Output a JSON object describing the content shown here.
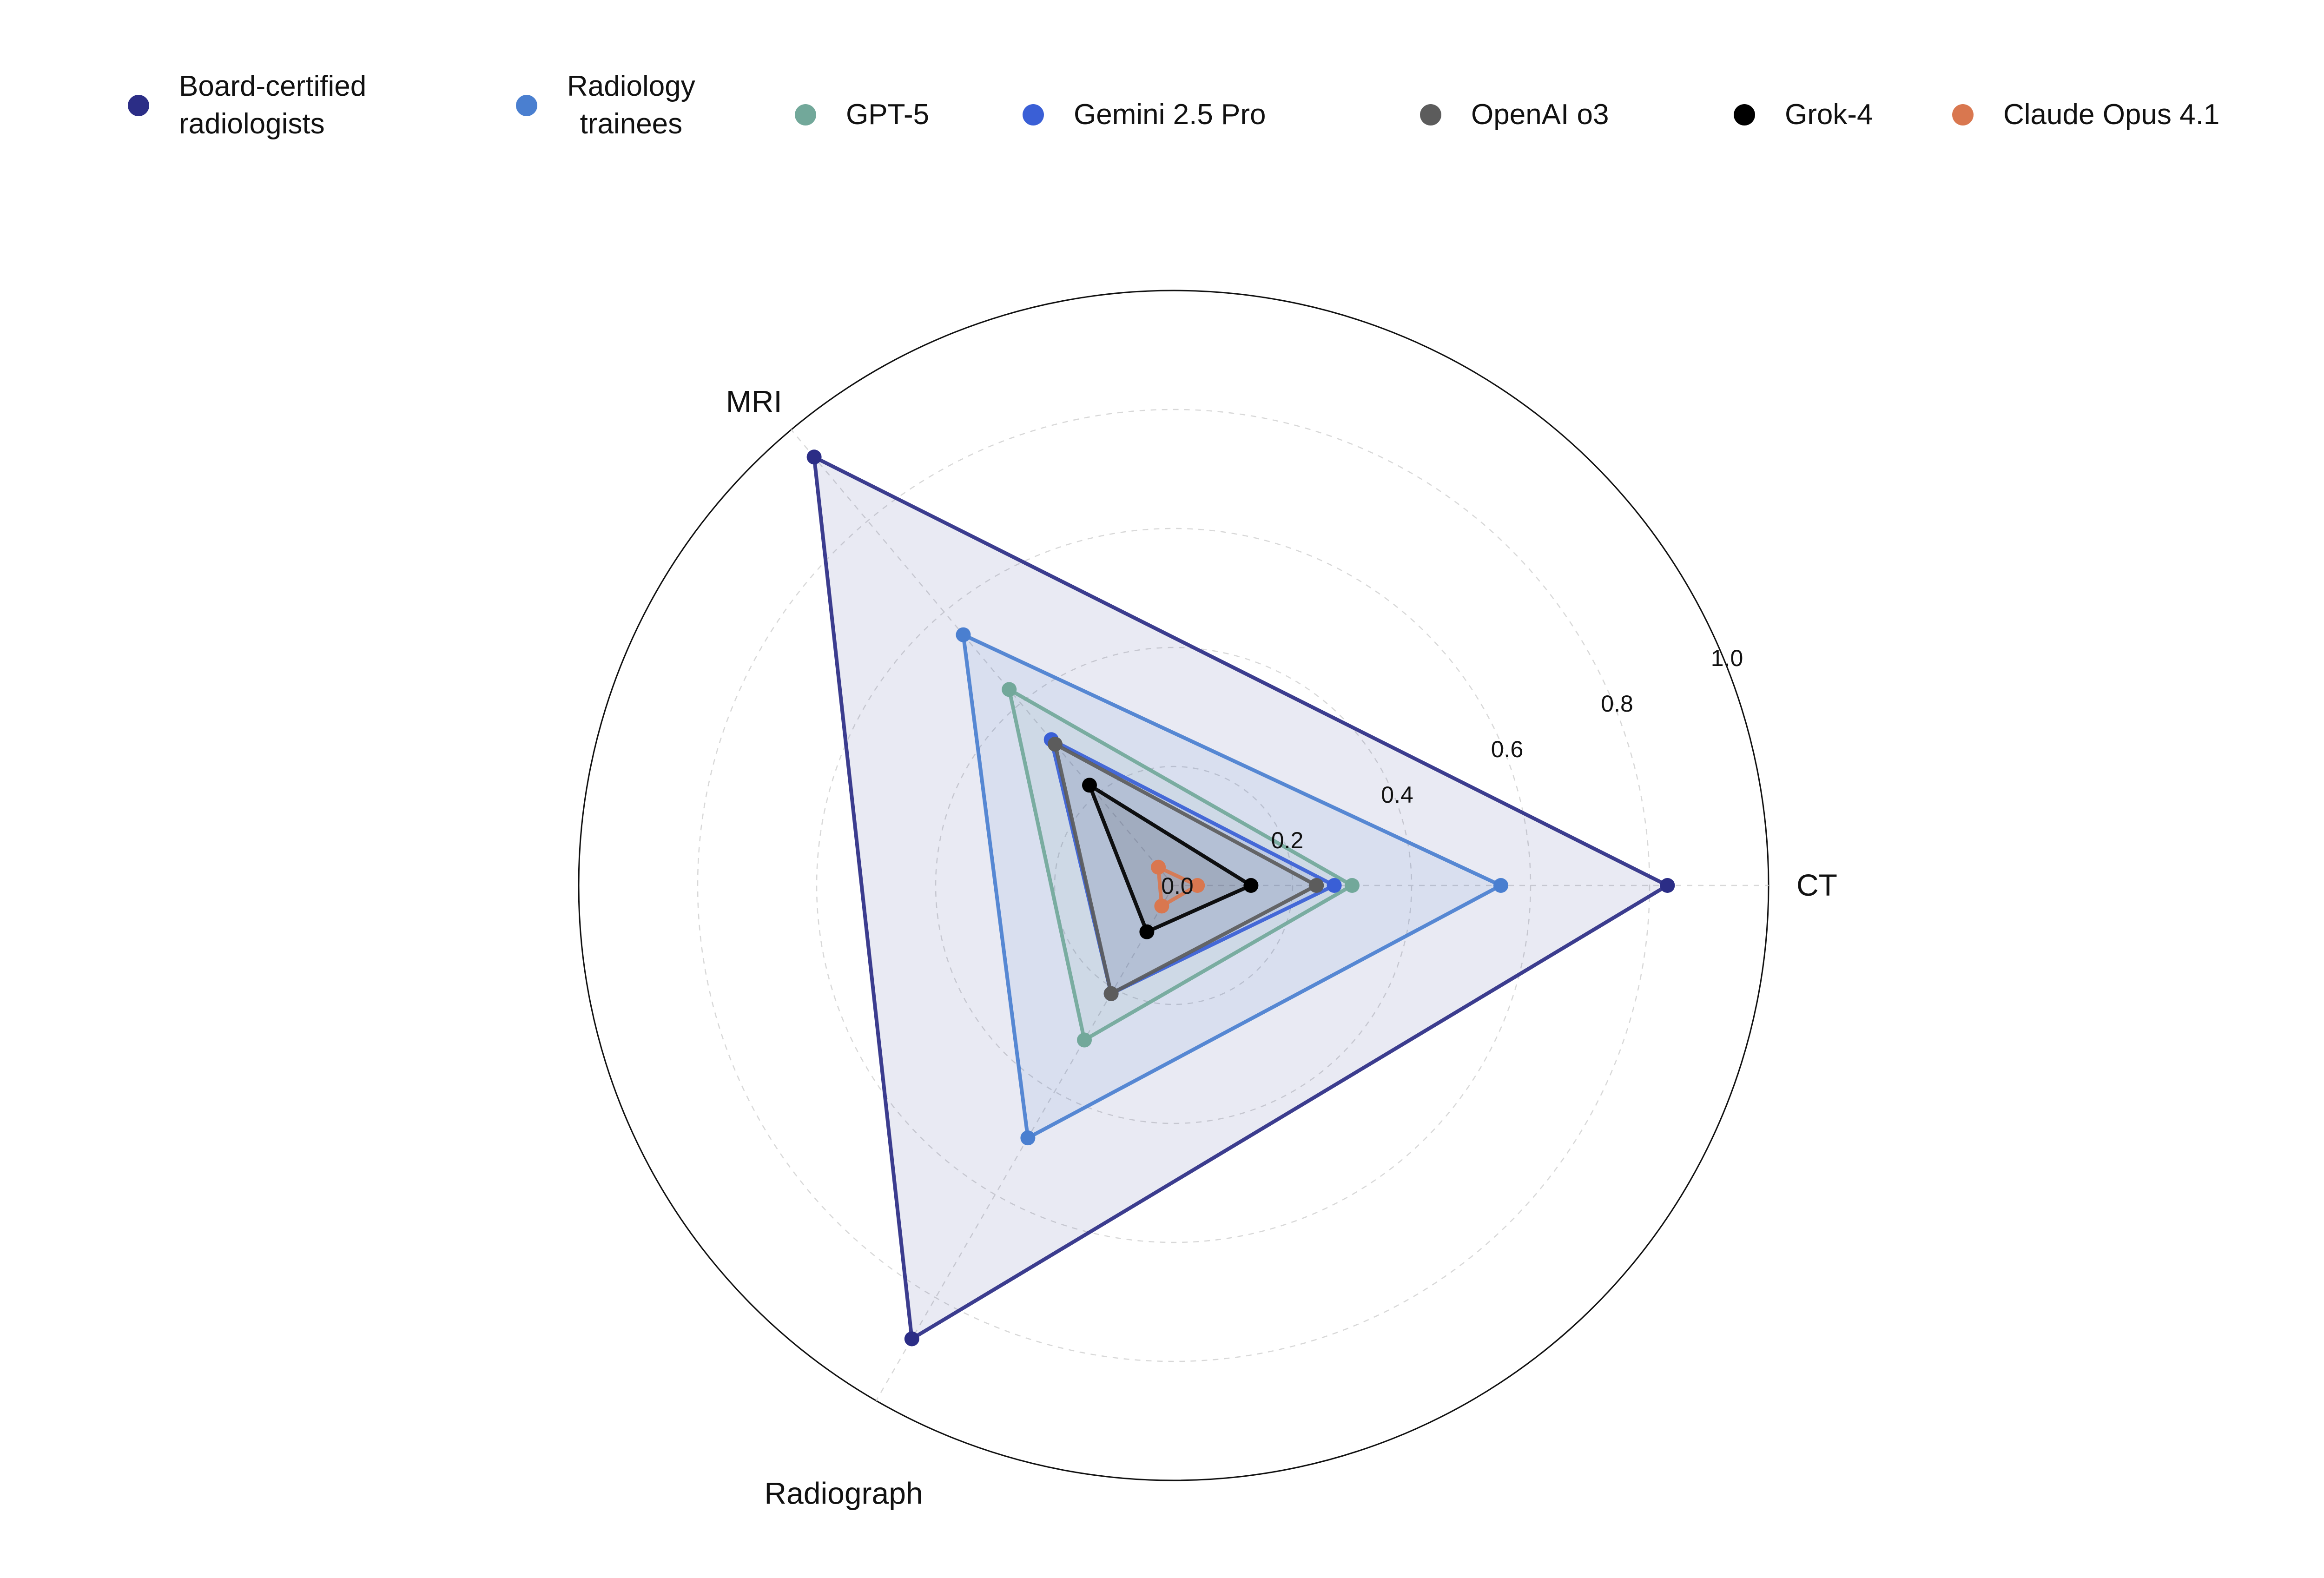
{
  "chart_data": {
    "type": "radar",
    "axes": [
      "CT",
      "MRI",
      "Radiograph"
    ],
    "rlim": [
      0,
      1.0
    ],
    "rticks": [
      "0.0",
      "0.2",
      "0.4",
      "0.6",
      "0.8",
      "1.0"
    ],
    "grid": true,
    "legend_position": "top",
    "series": [
      {
        "name": "Board-certified\nradiologists",
        "color": "#2b2d86",
        "values": [
          0.83,
          0.94,
          0.88
        ],
        "fill": true
      },
      {
        "name": "Radiology\ntrainees",
        "color": "#4a7fd0",
        "values": [
          0.55,
          0.55,
          0.49
        ],
        "fill": true
      },
      {
        "name": "GPT-5",
        "color": "#72a89a",
        "values": [
          0.3,
          0.43,
          0.3
        ],
        "fill": true
      },
      {
        "name": "Gemini 2.5 Pro",
        "color": "#3a5fd6",
        "values": [
          0.27,
          0.32,
          0.21
        ],
        "fill": true
      },
      {
        "name": "OpenAI o3",
        "color": "#5c5c5c",
        "values": [
          0.24,
          0.31,
          0.21
        ],
        "fill": true
      },
      {
        "name": "Grok-4",
        "color": "#000000",
        "values": [
          0.13,
          0.22,
          0.09
        ],
        "fill": true
      },
      {
        "name": "Claude Opus 4.1",
        "color": "#d9774f",
        "values": [
          0.04,
          0.04,
          0.04
        ],
        "fill": true
      }
    ]
  }
}
